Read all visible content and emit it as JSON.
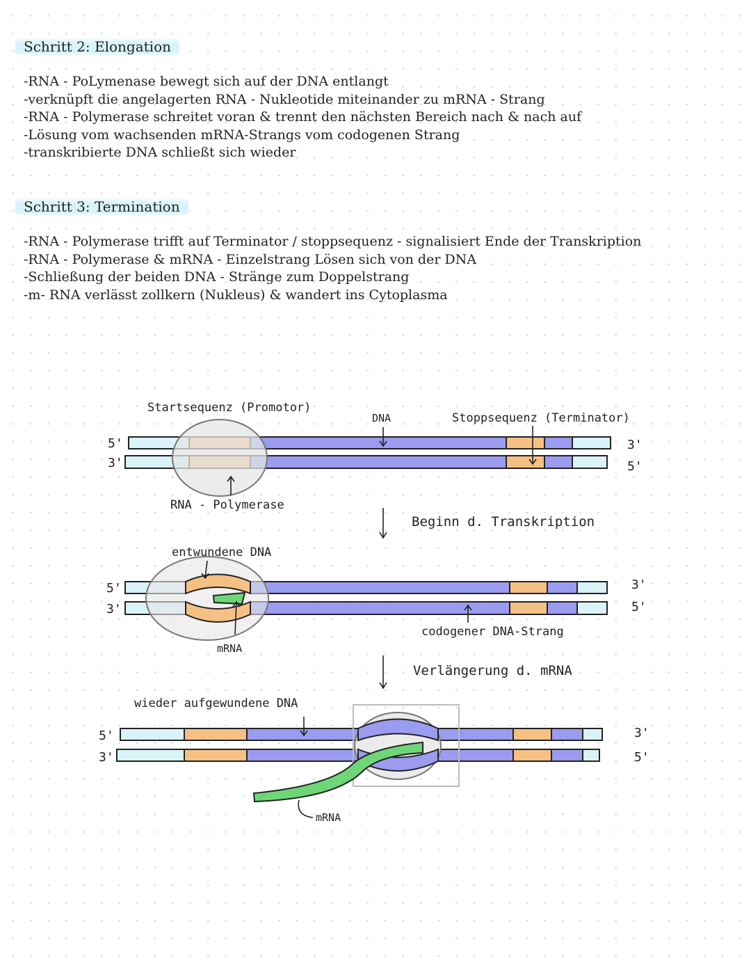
{
  "step2": {
    "heading": "Schritt 2: Elongation",
    "items": [
      "-RNA - PoLymenase bewegt sich auf der DNA entlangt",
      "-verknüpft die angelagerten RNA - Nukleotide miteinander zu mRNA - Strang",
      "-RNA - Polymerase schreitet voran & trennt den nächsten Bereich nach & nach auf",
      "-Lösung vom wachsenden mRNA-Strangs vom codogenen Strang",
      "-transkribierte DNA schließt sich wieder"
    ]
  },
  "step3": {
    "heading": "Schritt 3: Termination",
    "items": [
      "-RNA - Polymerase trifft auf Terminator / stoppsequenz - signalisiert Ende der Transkription",
      "-RNA - Polymerase & mRNA - Einzelstrang Lösen sich von der DNA",
      "-Schließung der beiden DNA - Stränge zum Doppelstrang",
      "-m- RNA verlässt zollkern (Nukleus) & wandert ins Cytoplasma"
    ]
  },
  "diagram": {
    "colors": {
      "light": "#d9f3f8",
      "promoter": "#f5c083",
      "dna": "#9b9bf0",
      "mrna": "#6ed676",
      "polymerase": "#e8e8e8"
    },
    "labels": {
      "start": "Startsequenz (Promotor)",
      "dna": "DNA",
      "stop": "Stoppsequenz (Terminator)",
      "polymerase": "RNA - Polymerase",
      "step1": "Beginn d. Transkription",
      "unwound": "entwundene DNA",
      "mrna1": "mRNA",
      "codogen": "codogener DNA-Strang",
      "step2": "Verlängerung d. mRNA",
      "rewound": "wieder aufgewundene DNA",
      "mrna2": "mRNA"
    },
    "ends": {
      "five": "5'",
      "three": "3'"
    }
  }
}
